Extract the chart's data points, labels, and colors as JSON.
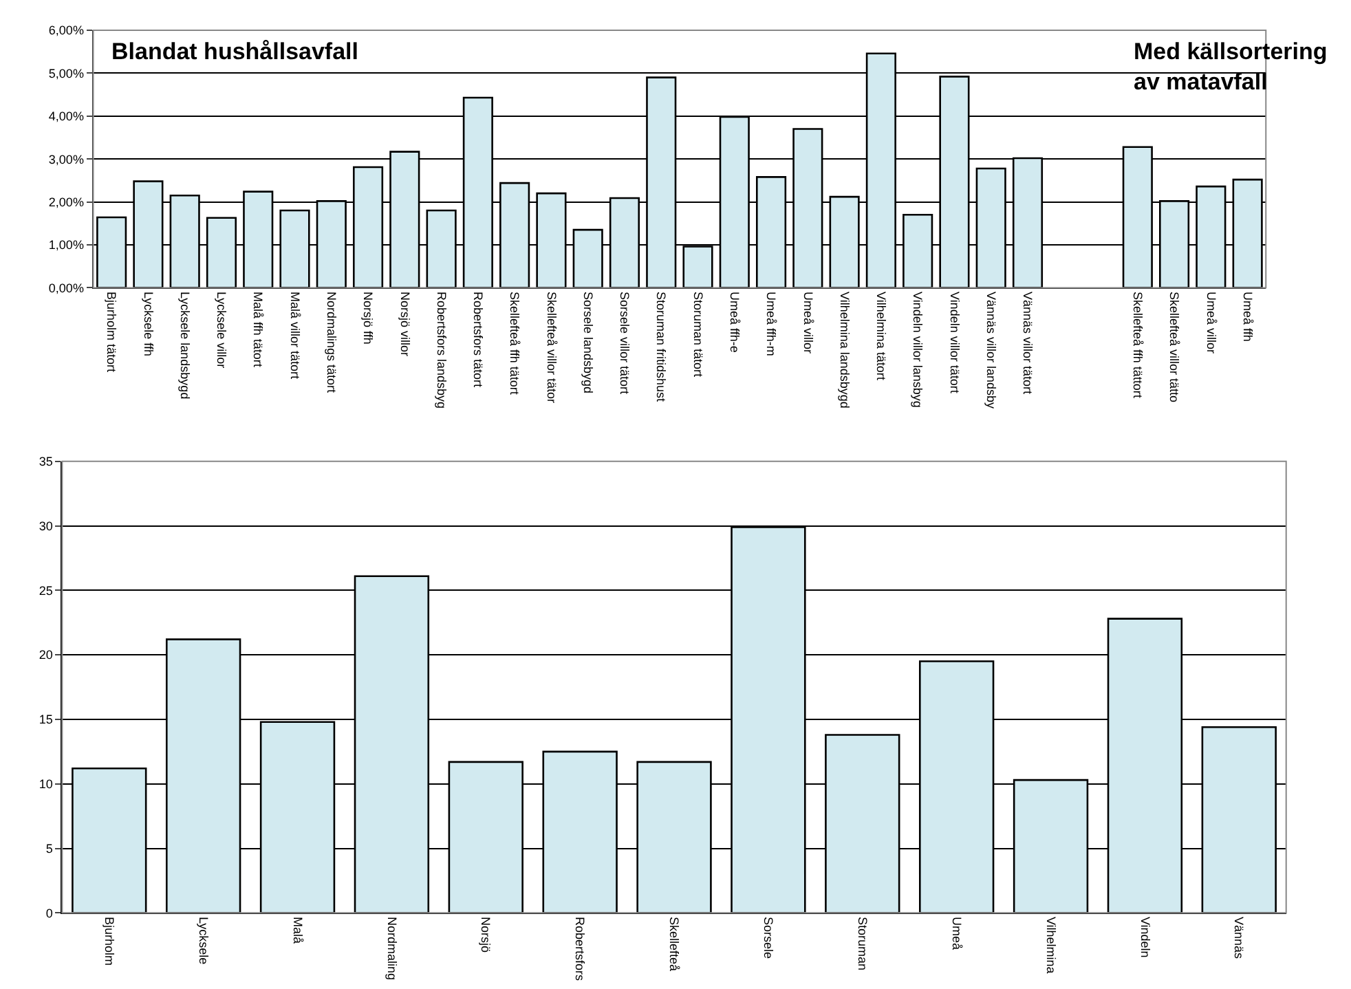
{
  "chart_data": [
    {
      "type": "bar",
      "annotations": [
        "Blandat hushållsavfall",
        "Med källsortering\nav matavfall"
      ],
      "categories": [
        "Bjurholm tätort",
        "Lycksele ffh",
        "Lycksele landsbygd",
        "Lycksele villor",
        "Malå ffh tätort",
        "Malå villor tätort",
        "Nordmalings tätort",
        "Norsjö ffh",
        "Norsjö villor",
        "Robertsfors landsbyg",
        "Robertsfors tätort",
        "Skellefteå ffh tätort",
        "Skellefteå villor tätor",
        "Sorsele landsbygd",
        "Sorsele villor tätort",
        "Storuman fritidshust",
        "Storuman tätort",
        "Umeå ffh-e",
        "Umeå ffh-m",
        "Umeå villor",
        "Vilhelmina landsbygd",
        "Vilhelmina tätort",
        "Vindeln villor lansbyg",
        "Vindeln villor tätort",
        "Vännäs villor landsby",
        "Vännäs villor tätort",
        null,
        null,
        "Skellefteå ffh tättort",
        "Skellefteå villor tätto",
        "Umeå villor",
        "Umeå ffh"
      ],
      "values": [
        1.64,
        2.48,
        2.15,
        1.63,
        2.24,
        1.8,
        2.02,
        2.81,
        3.17,
        1.8,
        4.43,
        2.44,
        2.2,
        1.35,
        2.09,
        4.9,
        0.96,
        3.98,
        2.58,
        3.7,
        2.12,
        5.46,
        1.7,
        4.92,
        2.78,
        3.02,
        null,
        null,
        3.28,
        2.02,
        2.36,
        2.52
      ],
      "color": "#d2eaf0",
      "ylim": [
        0,
        6
      ],
      "yticks": [
        {
          "value": 0,
          "label": "0,00%"
        },
        {
          "value": 1,
          "label": "1,00%"
        },
        {
          "value": 2,
          "label": "2,00%"
        },
        {
          "value": 3,
          "label": "3,00%"
        },
        {
          "value": 4,
          "label": "4,00%"
        },
        {
          "value": 5,
          "label": "5,00%"
        },
        {
          "value": 6,
          "label": "6,00%"
        }
      ],
      "grid": "y"
    },
    {
      "type": "bar",
      "categories": [
        "Bjurholm",
        "Lycksele",
        "Malå",
        "Nordmaling",
        "Norsjö",
        "Robertsfors",
        "Skellefteå",
        "Sorsele",
        "Storuman",
        "Umeå",
        "Vilhelmina",
        "Vindeln",
        "Vännäs"
      ],
      "values": [
        11.2,
        21.2,
        14.8,
        26.1,
        11.7,
        12.5,
        11.7,
        29.9,
        13.8,
        19.5,
        10.3,
        22.8,
        14.4
      ],
      "color": "#d2eaf0",
      "ylim": [
        0,
        35
      ],
      "yticks": [
        0,
        5,
        10,
        15,
        20,
        25,
        30,
        35
      ],
      "grid": "y"
    }
  ]
}
